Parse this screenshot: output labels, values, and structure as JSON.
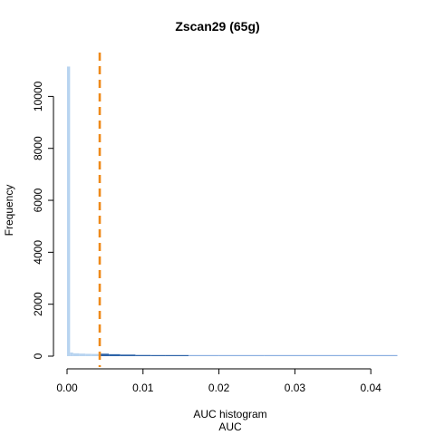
{
  "chart_data": {
    "type": "histogram",
    "title": "Zscan29 (65g)",
    "subtitle": "AUC histogram",
    "xlabel": "AUC",
    "ylabel": "Frequency",
    "xlim": [
      0,
      0.0435
    ],
    "ylim": [
      0,
      11200
    ],
    "x_ticks": [
      "0.00",
      "0.01",
      "0.02",
      "0.03",
      "0.04"
    ],
    "x_tick_values": [
      0,
      0.01,
      0.02,
      0.03,
      0.04
    ],
    "y_ticks": [
      "0",
      "2000",
      "4000",
      "6000",
      "8000",
      "10000"
    ],
    "y_tick_values": [
      0,
      2000,
      4000,
      6000,
      8000,
      10000
    ],
    "threshold": 0.0043,
    "threshold_color": "#ee8a1a",
    "bins": [
      {
        "start": 0.0,
        "end": 0.0004,
        "count": 11150
      },
      {
        "start": 0.0004,
        "end": 0.0008,
        "count": 140
      },
      {
        "start": 0.0008,
        "end": 0.0016,
        "count": 110
      },
      {
        "start": 0.0016,
        "end": 0.0024,
        "count": 100
      },
      {
        "start": 0.0024,
        "end": 0.0032,
        "count": 90
      },
      {
        "start": 0.0032,
        "end": 0.0043,
        "count": 85
      },
      {
        "start": 0.0043,
        "end": 0.0055,
        "count": 95
      },
      {
        "start": 0.0055,
        "end": 0.007,
        "count": 75
      },
      {
        "start": 0.007,
        "end": 0.009,
        "count": 60
      },
      {
        "start": 0.009,
        "end": 0.011,
        "count": 45
      },
      {
        "start": 0.011,
        "end": 0.013,
        "count": 35
      },
      {
        "start": 0.013,
        "end": 0.016,
        "count": 25
      },
      {
        "start": 0.016,
        "end": 0.02,
        "count": 12
      },
      {
        "start": 0.02,
        "end": 0.026,
        "count": 6
      },
      {
        "start": 0.026,
        "end": 0.033,
        "count": 4
      },
      {
        "start": 0.033,
        "end": 0.0435,
        "count": 3
      }
    ],
    "colors": {
      "below_threshold": "#b8d4f0",
      "above_threshold": "#2d63a8",
      "tail": "#8aaee0"
    },
    "grid": false,
    "legend": "none"
  }
}
